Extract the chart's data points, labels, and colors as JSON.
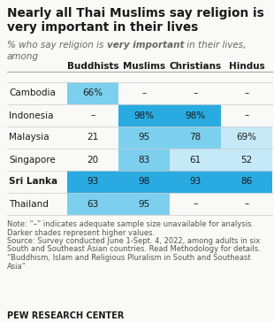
{
  "title_line1": "Nearly all Thai Muslims say religion is",
  "title_line2": "very important in their lives",
  "subtitle1": "% who say religion is ",
  "subtitle_bold": "very important",
  "subtitle2": " in their lives,",
  "subtitle3": "among",
  "columns": [
    "Buddhists",
    "Muslims",
    "Christians",
    "Hindus"
  ],
  "rows": [
    "Cambodia",
    "Indonesia",
    "Malaysia",
    "Singapore",
    "Sri Lanka",
    "Thailand"
  ],
  "cells": [
    [
      "66%",
      "–",
      "–",
      "–"
    ],
    [
      "–",
      "98%",
      "98%",
      "–"
    ],
    [
      "21",
      "95",
      "78",
      "69%"
    ],
    [
      "20",
      "83",
      "61",
      "52"
    ],
    [
      "93",
      "98",
      "93",
      "86"
    ],
    [
      "63",
      "95",
      "–",
      "–"
    ]
  ],
  "cell_colors": [
    [
      "#7dcfee",
      null,
      null,
      null
    ],
    [
      null,
      "#29abe2",
      "#29abe2",
      null
    ],
    [
      null,
      "#7dcfee",
      "#7dcfee",
      "#c6e9f7"
    ],
    [
      null,
      "#7dcfee",
      "#c6e9f7",
      "#c6e9f7"
    ],
    [
      "#29abe2",
      "#29abe2",
      "#29abe2",
      "#29abe2"
    ],
    [
      "#7dcfee",
      "#7dcfee",
      null,
      null
    ]
  ],
  "note_line1": "Note: “–” indicates adequate sample size unavailable for analysis.",
  "note_line2": "Darker shades represent higher values.",
  "note_line3": "Source: Survey conducted June 1-Sept. 4, 2022, among adults in six",
  "note_line4": "South and Southeast Asian countries. Read Methodology for details.",
  "note_line5": "“Buddhism, Islam and Religious Pluralism in South and Southeast",
  "note_line6": "Asia”",
  "footer": "PEW RESEARCH CENTER",
  "bg_color": "#f9f9f7",
  "title_color": "#1a1a1a",
  "subtitle_color": "#666666",
  "note_color": "#555555"
}
